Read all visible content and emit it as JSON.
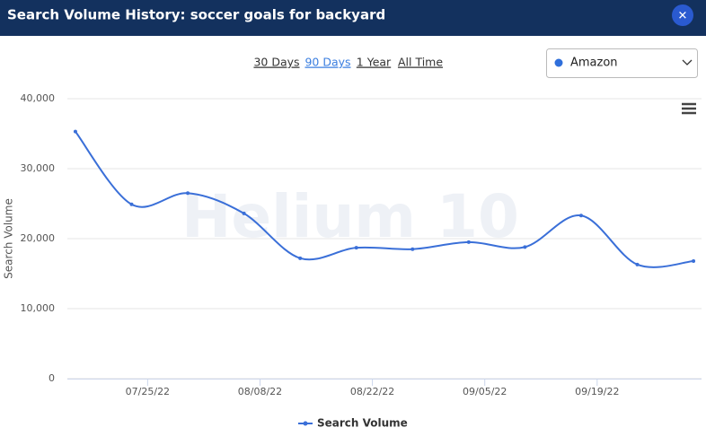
{
  "header": {
    "title": "Search Volume History: soccer goals for backyard",
    "close": "✕"
  },
  "tabs": [
    "30 Days",
    "90 Days",
    "1 Year",
    "All Time"
  ],
  "active_tab": 1,
  "dropdown": {
    "label": "Amazon",
    "color": "#2f6fdb"
  },
  "chart_data": {
    "type": "line",
    "watermark": "Helium 10",
    "y_label": "Search Volume",
    "x": [
      "07/16/22",
      "07/23/22",
      "07/30/22",
      "08/06/22",
      "08/13/22",
      "08/20/22",
      "08/27/22",
      "09/03/22",
      "09/10/22",
      "09/17/22",
      "09/24/22",
      "10/01/22"
    ],
    "series": [
      {
        "name": "Search Volume",
        "color": "#3a6fd8",
        "values": [
          35300,
          24900,
          26500,
          23600,
          17200,
          18700,
          18500,
          19500,
          18800,
          23300,
          16300,
          16800
        ]
      }
    ],
    "xlim": [
      "07/15/22",
      "10/02/22"
    ],
    "xticks": [
      "07/25/22",
      "08/08/22",
      "08/22/22",
      "09/05/22",
      "09/19/22"
    ],
    "ylim": [
      0,
      40000
    ],
    "yticks": [
      0,
      {
        "value": 10000,
        "label": "10,000"
      },
      {
        "value": 20000,
        "label": "20,000"
      },
      {
        "value": 30000,
        "label": "30,000"
      },
      {
        "value": 40000,
        "label": "40,000"
      }
    ],
    "grid": true,
    "legend": "bottom"
  }
}
